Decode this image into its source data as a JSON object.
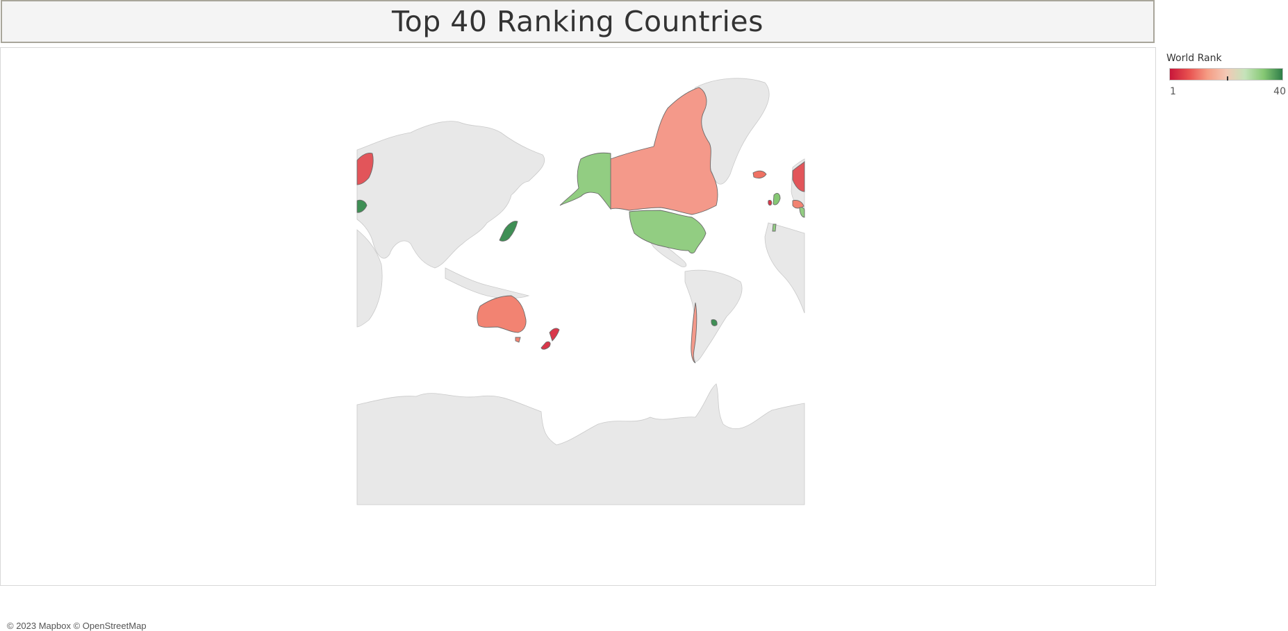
{
  "title": "Top 40 Ranking Countries",
  "attribution": "© 2023 Mapbox © OpenStreetMap",
  "legend": {
    "title": "World Rank",
    "min": "1",
    "max": "40",
    "gradient": [
      "#c8173a",
      "#e8504f",
      "#f59c84",
      "#f3c8b5",
      "#c5e3ba",
      "#86c874",
      "#2e7d48"
    ]
  },
  "colors": {
    "land": "#e8e8e8",
    "ocean": "#ffffff",
    "border": "#c4c4c4",
    "highlight_border": "#6b6b6b"
  },
  "map": {
    "projection": "pacific-centered mercator",
    "highlighted_countries": [
      {
        "name": "Canada",
        "color": "#f4998a"
      },
      {
        "name": "United States",
        "color": "#92cd82"
      },
      {
        "name": "Alaska",
        "color": "#92cd82"
      },
      {
        "name": "Australia",
        "color": "#f28372"
      },
      {
        "name": "New Zealand",
        "color": "#d9374a"
      },
      {
        "name": "Japan",
        "color": "#3f8f55"
      },
      {
        "name": "Norway",
        "color": "#e2555a"
      },
      {
        "name": "United Kingdom",
        "color": "#86c874"
      },
      {
        "name": "Iceland",
        "color": "#ef7163"
      },
      {
        "name": "Uruguay",
        "color": "#3f8f55"
      },
      {
        "name": "Chile",
        "color": "#f4998a"
      }
    ]
  }
}
